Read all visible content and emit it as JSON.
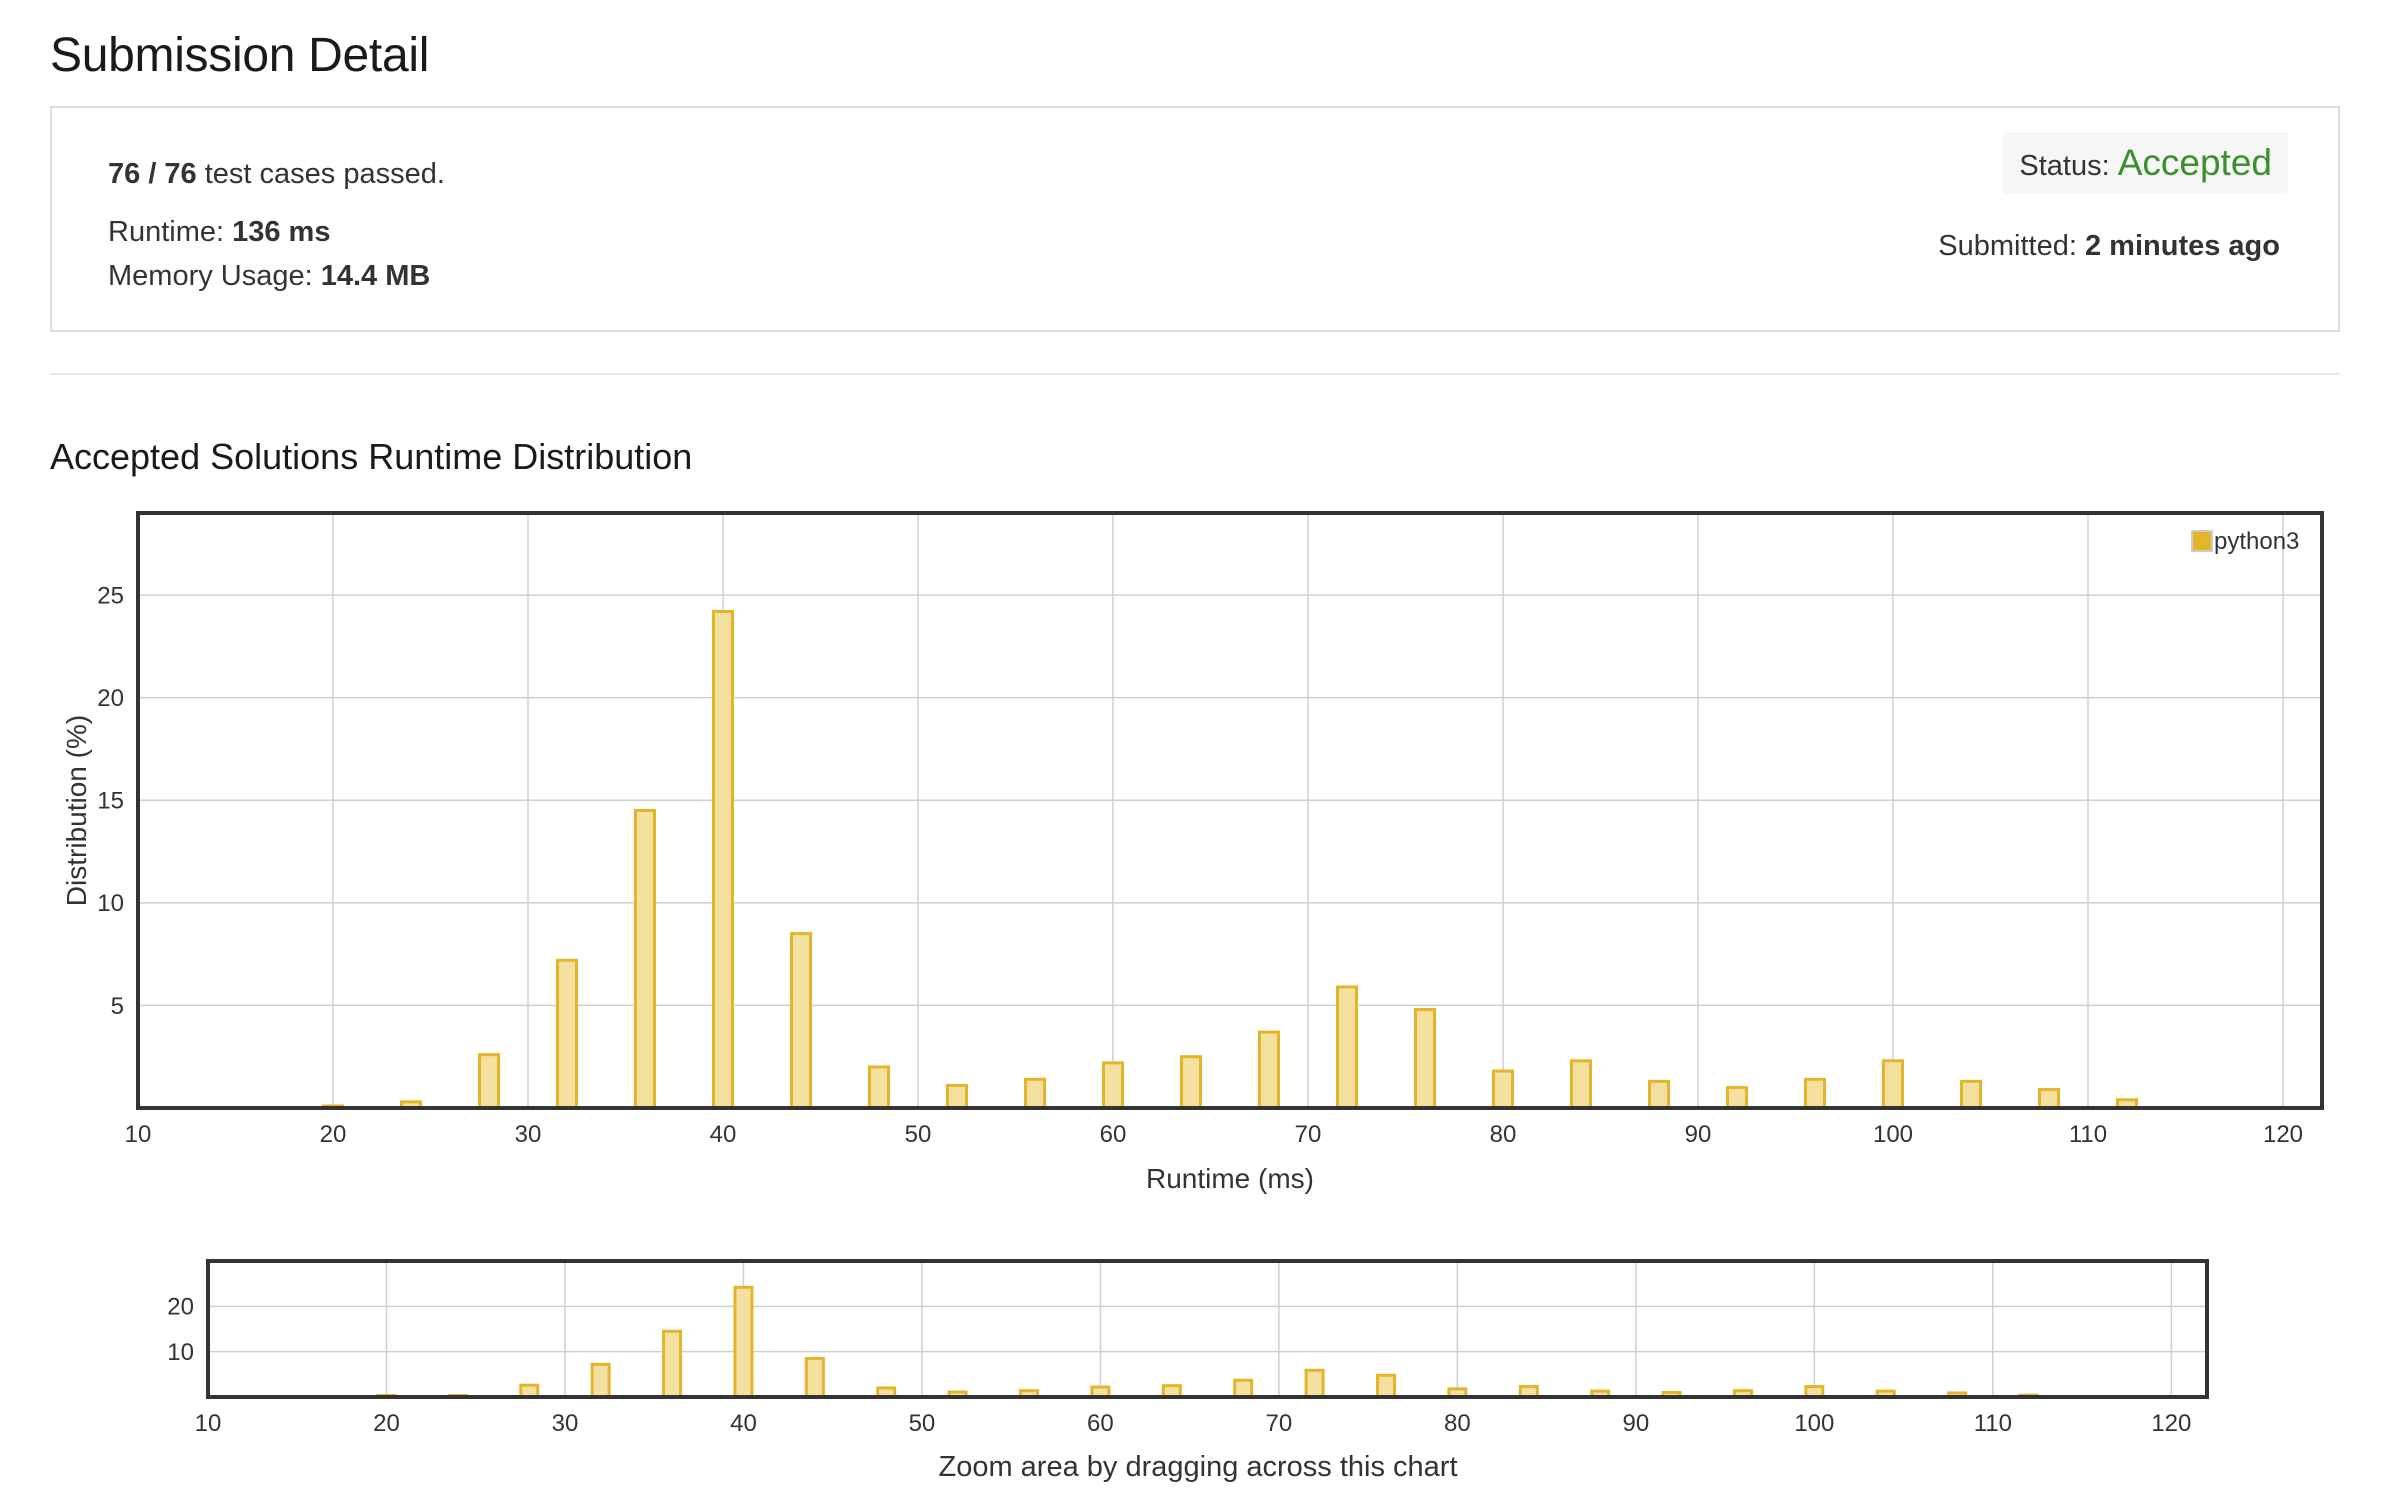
{
  "page_title": "Submission Detail",
  "details": {
    "passed_count": "76 / 76",
    "passed_suffix": "test cases passed.",
    "runtime_label": "Runtime:",
    "runtime_value": "136 ms",
    "memory_label": "Memory Usage:",
    "memory_value": "14.4 MB",
    "status_label": "Status:",
    "status_value": "Accepted",
    "submitted_label": "Submitted:",
    "submitted_value": "2 minutes ago"
  },
  "colors": {
    "accepted": "#3b8f2e",
    "bar_fill": "#f4e1a0",
    "bar_stroke": "#e2b52a"
  },
  "section_title": "Accepted Solutions Runtime Distribution",
  "chart_data": [
    {
      "type": "bar",
      "title": "",
      "xlabel": "Runtime (ms)",
      "ylabel": "Distribution (%)",
      "xlim": [
        10,
        122
      ],
      "ylim": [
        0,
        29
      ],
      "xticks": [
        10,
        20,
        30,
        40,
        50,
        60,
        70,
        80,
        90,
        100,
        110,
        120
      ],
      "yticks": [
        5,
        10,
        15,
        20,
        25
      ],
      "grid": true,
      "legend": "top-right",
      "series": [
        {
          "name": "python3",
          "x": [
            20,
            24,
            28,
            32,
            36,
            40,
            44,
            48,
            52,
            56,
            60,
            64,
            68,
            72,
            76,
            80,
            84,
            88,
            92,
            96,
            100,
            104,
            108,
            112
          ],
          "values": [
            0.1,
            0.3,
            2.6,
            7.2,
            14.5,
            24.2,
            8.5,
            2.0,
            1.1,
            1.4,
            2.2,
            2.5,
            3.7,
            5.9,
            4.8,
            1.8,
            2.3,
            1.3,
            1.0,
            1.4,
            2.3,
            1.3,
            0.9,
            0.4
          ]
        }
      ]
    },
    {
      "type": "bar",
      "title": "",
      "xlabel": "Zoom area by dragging across this chart",
      "xlim": [
        10,
        122
      ],
      "ylim": [
        0,
        30
      ],
      "xticks": [
        10,
        20,
        30,
        40,
        50,
        60,
        70,
        80,
        90,
        100,
        110,
        120
      ],
      "yticks": [
        10,
        20
      ],
      "grid": true,
      "series": [
        {
          "x": [
            20,
            24,
            28,
            32,
            36,
            40,
            44,
            48,
            52,
            56,
            60,
            64,
            68,
            72,
            76,
            80,
            84,
            88,
            92,
            96,
            100,
            104,
            108,
            112
          ],
          "values": [
            0.1,
            0.3,
            2.6,
            7.2,
            14.5,
            24.2,
            8.5,
            2.0,
            1.1,
            1.4,
            2.2,
            2.5,
            3.7,
            5.9,
            4.8,
            1.8,
            2.3,
            1.3,
            1.0,
            1.4,
            2.3,
            1.3,
            0.9,
            0.4
          ]
        }
      ]
    }
  ]
}
